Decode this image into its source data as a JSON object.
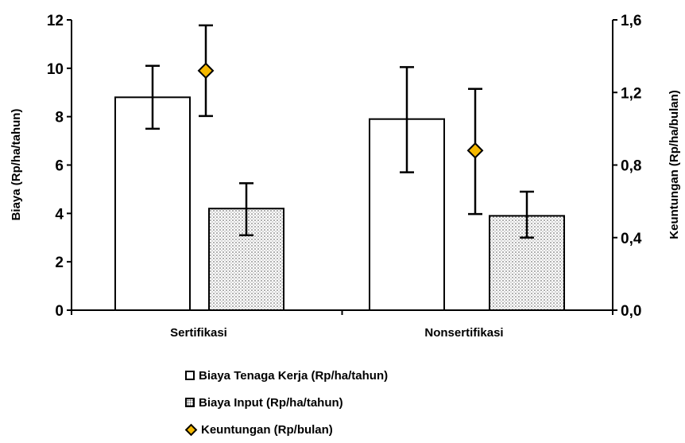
{
  "chart_data": {
    "type": "bar",
    "categories": [
      "Sertifikasi",
      "Nonsertifikasi"
    ],
    "series": [
      {
        "name": "Biaya Tenaga Kerja (Rp/ha/tahun)",
        "type": "bar",
        "axis": "left",
        "values": [
          8.8,
          7.9
        ],
        "error_low": [
          7.5,
          5.7
        ],
        "error_high": [
          10.1,
          10.05
        ],
        "fill": "#ffffff"
      },
      {
        "name": "Biaya Input (Rp/ha/tahun)",
        "type": "bar",
        "axis": "left",
        "values": [
          4.2,
          3.9
        ],
        "error_low": [
          3.1,
          3.0
        ],
        "error_high": [
          5.25,
          4.9
        ],
        "fill": "dotted"
      },
      {
        "name": "Keuntungan (Rp/bulan)",
        "type": "scatter",
        "axis": "right",
        "values": [
          1.32,
          0.88
        ],
        "error_low": [
          1.07,
          0.53
        ],
        "error_high": [
          1.57,
          1.22
        ],
        "color": "#f5b800",
        "marker": "diamond"
      }
    ],
    "y_left": {
      "label": "Biaya (Rp/ha/tahun)",
      "range": [
        0,
        12
      ],
      "ticks": [
        0,
        2,
        4,
        6,
        8,
        10,
        12
      ],
      "tick_labels": [
        "0",
        "2",
        "4",
        "6",
        "8",
        "10",
        "12"
      ]
    },
    "y_right": {
      "label": "Keuntungan (Rp/ha/bulan)",
      "range": [
        0,
        1.6
      ],
      "ticks": [
        0,
        0.4,
        0.8,
        1.2,
        1.6
      ],
      "tick_labels": [
        "0,0",
        "0,4",
        "0,8",
        "1,2",
        "1,6"
      ]
    },
    "grid": false,
    "legend_position": "bottom"
  },
  "legend": {
    "items": [
      "Biaya Tenaga Kerja (Rp/ha/tahun)",
      "Biaya Input (Rp/ha/tahun)",
      "Keuntungan (Rp/bulan)"
    ]
  }
}
